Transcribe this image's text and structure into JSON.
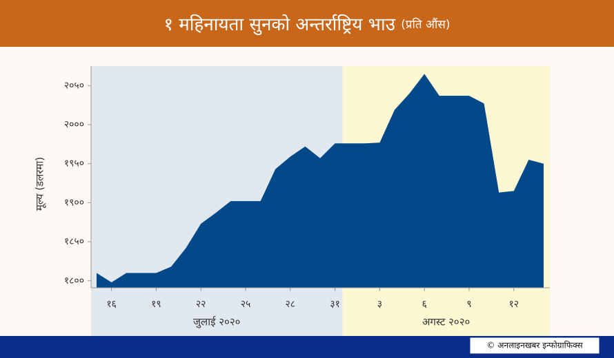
{
  "chart_data": {
    "type": "area",
    "title": "१ महिनायता सुनको अन्तर्राष्ट्रिय भाउ",
    "subtitle": "(प्रति औंस)",
    "y_label": "मूल्य (डलरमा)",
    "credit": "© अनलाइनखबर इन्फोग्राफिक्स",
    "x_groups": [
      "जुलाई २०२०",
      "अगस्ट २०२०"
    ],
    "categories": [
      null,
      "१६",
      null,
      null,
      "१९",
      null,
      null,
      "२२",
      null,
      null,
      "२५",
      null,
      null,
      "२८",
      null,
      null,
      "३१",
      null,
      null,
      "३",
      null,
      null,
      "६",
      null,
      null,
      "९",
      null,
      null,
      "१२",
      null,
      null
    ],
    "values": [
      1810,
      1798,
      1810,
      1810,
      1810,
      1818,
      1842,
      1873,
      1887,
      1902,
      1902,
      1902,
      1943,
      1959,
      1972,
      1957,
      1976,
      1976,
      1976,
      1977,
      2019,
      2040,
      2065,
      2037,
      2037,
      2037,
      2027,
      1913,
      1915,
      1955,
      1950
    ],
    "color": "#03498a",
    "ylim": [
      1791,
      2075
    ],
    "yticks": [
      {
        "value": 1800,
        "label": "१८००"
      },
      {
        "value": 1850,
        "label": "१८५०"
      },
      {
        "value": 1900,
        "label": "१९००"
      },
      {
        "value": 1950,
        "label": "१९५०"
      },
      {
        "value": 2000,
        "label": "२०००"
      },
      {
        "value": 2050,
        "label": "२०५०"
      }
    ]
  }
}
